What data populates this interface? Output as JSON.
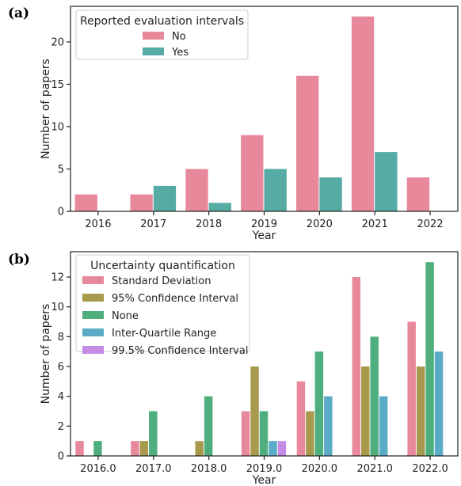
{
  "chart_data": [
    {
      "panel_label": "(a)",
      "type": "bar",
      "xlabel": "Year",
      "ylabel": "Number of papers",
      "categories": [
        "2016",
        "2017",
        "2018",
        "2019",
        "2020",
        "2021",
        "2022"
      ],
      "ylim": [
        0,
        24.2
      ],
      "yticks": [
        0,
        5,
        10,
        15,
        20
      ],
      "legend": {
        "title": "Reported evaluation intervals",
        "placement": "top-left"
      },
      "series": [
        {
          "name": "No",
          "color": "#e8889b",
          "values": [
            2,
            2,
            5,
            9,
            16,
            23,
            4
          ]
        },
        {
          "name": "Yes",
          "color": "#56aba4",
          "values": [
            0,
            3,
            1,
            5,
            4,
            7,
            0
          ]
        }
      ]
    },
    {
      "panel_label": "(b)",
      "type": "bar",
      "xlabel": "Year",
      "ylabel": "Number of papers",
      "categories": [
        "2016.0",
        "2017.0",
        "2018.0",
        "2019.0",
        "2020.0",
        "2021.0",
        "2022.0"
      ],
      "ylim": [
        0,
        13.7
      ],
      "yticks": [
        0,
        2,
        4,
        6,
        8,
        10,
        12
      ],
      "legend": {
        "title": "Uncertainty quantification",
        "placement": "top-left"
      },
      "series": [
        {
          "name": "Standard Deviation",
          "color": "#e8889b",
          "values": [
            1,
            1,
            0,
            3,
            5,
            12,
            9
          ]
        },
        {
          "name": "95% Confidence Interval",
          "color": "#a79a4d",
          "values": [
            0,
            1,
            1,
            6,
            3,
            6,
            6
          ]
        },
        {
          "name": "None",
          "color": "#4fae7d",
          "values": [
            1,
            3,
            4,
            3,
            7,
            8,
            13
          ]
        },
        {
          "name": "Inter-Quartile Range",
          "color": "#5aacc6",
          "values": [
            0,
            0,
            0,
            1,
            4,
            4,
            7
          ]
        },
        {
          "name": "99.5% Confidence Interval",
          "color": "#c58be6",
          "values": [
            0,
            0,
            0,
            1,
            0,
            0,
            0
          ]
        }
      ]
    }
  ]
}
